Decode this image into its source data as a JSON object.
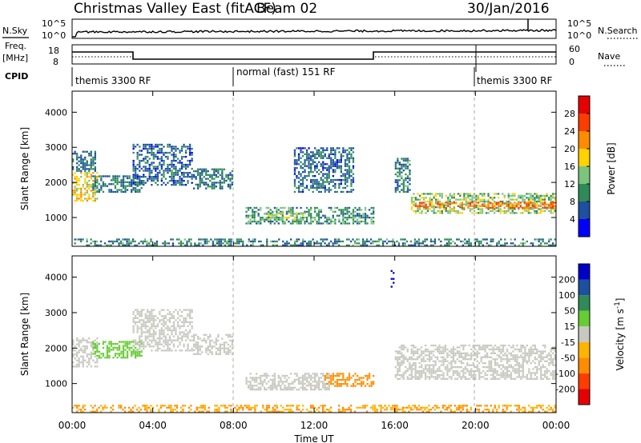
{
  "header": {
    "title": "Christmas Valley East (fitACF)",
    "beam": "Beam 02",
    "date": "30/Jan/2016"
  },
  "strips": {
    "nsky": {
      "left_label": "N.Sky",
      "left_ticks": [
        "10^5",
        "10^0"
      ],
      "right_label": "N.Search",
      "right_ticks": [
        "10^5",
        "10^0"
      ]
    },
    "freq": {
      "left_label_1": "Freq.",
      "left_label_2": "[MHz]",
      "left_ticks": [
        "18",
        "8"
      ],
      "right_label": "Nave",
      "right_ticks": [
        "60",
        "0"
      ]
    },
    "cpid": {
      "label": "CPID",
      "segments": [
        {
          "start": "00:00",
          "name": "themis 3300 RF"
        },
        {
          "start": "08:00",
          "name": "normal (fast) 151 RF"
        },
        {
          "start": "20:00",
          "name": "themis 3300 RF"
        }
      ]
    }
  },
  "x_axis": {
    "label": "Time UT",
    "ticks": [
      "00:00",
      "04:00",
      "08:00",
      "12:00",
      "16:00",
      "20:00",
      "00:00"
    ]
  },
  "colors": {
    "power_scale": [
      "#0000ff",
      "#1e50a0",
      "#2e8b57",
      "#7cc47c",
      "#ffd200",
      "#ff8c00",
      "#ff3c00",
      "#e60000"
    ],
    "velocity_scale": [
      "#e60000",
      "#ff3c00",
      "#ff8c00",
      "#ffb400",
      "#c8c8c0",
      "#66cc33",
      "#2e8b57",
      "#1e50a0",
      "#0000c8"
    ],
    "ground_scatter": "#c8c8c0"
  },
  "chart_data": [
    {
      "type": "heatmap",
      "name": "power",
      "xlabel": "Time UT",
      "ylabel": "Slant Range [km]",
      "ylim": [
        180,
        4600
      ],
      "yticks": [
        1000,
        2000,
        3000,
        4000
      ],
      "xlim_hours": [
        0,
        24
      ],
      "colorbar": {
        "label": "Power [dB]",
        "range": [
          0,
          32
        ],
        "ticks": [
          4,
          8,
          12,
          16,
          20,
          24,
          28
        ]
      },
      "regions": [
        {
          "t0": 0.0,
          "t1": 1.3,
          "r0": 1450,
          "r1": 2300,
          "value": 18
        },
        {
          "t0": 0.0,
          "t1": 1.2,
          "r0": 2300,
          "r1": 2900,
          "value": 8
        },
        {
          "t0": 1.0,
          "t1": 3.5,
          "r0": 1700,
          "r1": 2200,
          "value": 8
        },
        {
          "t0": 3.0,
          "t1": 6.0,
          "r0": 1900,
          "r1": 3100,
          "value": 7
        },
        {
          "t0": 6.0,
          "t1": 8.0,
          "r0": 1800,
          "r1": 2400,
          "value": 8
        },
        {
          "t0": 8.6,
          "t1": 15.0,
          "r0": 800,
          "r1": 1300,
          "value": 10
        },
        {
          "t0": 9.6,
          "t1": 11.6,
          "r0": 900,
          "r1": 1150,
          "value": 15
        },
        {
          "t0": 11.0,
          "t1": 14.0,
          "r0": 1700,
          "r1": 3000,
          "value": 7
        },
        {
          "t0": 16.0,
          "t1": 16.8,
          "r0": 1700,
          "r1": 2700,
          "value": 9
        },
        {
          "t0": 16.8,
          "t1": 24.0,
          "r0": 1100,
          "r1": 1700,
          "value": 14
        },
        {
          "t0": 17.0,
          "t1": 24.0,
          "r0": 1250,
          "r1": 1450,
          "value": 24
        },
        {
          "t0": 0.0,
          "t1": 24.0,
          "r0": 180,
          "r1": 400,
          "value": 9
        }
      ]
    },
    {
      "type": "heatmap",
      "name": "velocity",
      "xlabel": "Time UT",
      "ylabel": "Slant Range [km]",
      "ylim": [
        180,
        4600
      ],
      "yticks": [
        1000,
        2000,
        3000,
        4000
      ],
      "xlim_hours": [
        0,
        24
      ],
      "colorbar": {
        "label": "Velocity [m s^-1]",
        "range": [
          -250,
          250
        ],
        "ticks": [
          200,
          100,
          50,
          15,
          -15,
          -50,
          -100,
          -200
        ]
      },
      "regions": [
        {
          "t0": 0.0,
          "t1": 1.3,
          "r0": 1450,
          "r1": 2300,
          "value": 0
        },
        {
          "t0": 1.0,
          "t1": 3.5,
          "r0": 1700,
          "r1": 2200,
          "value": 30
        },
        {
          "t0": 3.0,
          "t1": 6.0,
          "r0": 1900,
          "r1": 3100,
          "value": 0
        },
        {
          "t0": 6.0,
          "t1": 8.0,
          "r0": 1800,
          "r1": 2400,
          "value": 0
        },
        {
          "t0": 8.6,
          "t1": 12.8,
          "r0": 800,
          "r1": 1300,
          "value": 0
        },
        {
          "t0": 12.5,
          "t1": 15.0,
          "r0": 900,
          "r1": 1300,
          "value": -60
        },
        {
          "t0": 16.0,
          "t1": 24.0,
          "r0": 1100,
          "r1": 2100,
          "value": 0
        },
        {
          "t0": 15.8,
          "t1": 16.0,
          "r0": 3700,
          "r1": 4200,
          "value": 220
        },
        {
          "t0": 0.0,
          "t1": 24.0,
          "r0": 180,
          "r1": 400,
          "value": -50
        }
      ]
    }
  ]
}
